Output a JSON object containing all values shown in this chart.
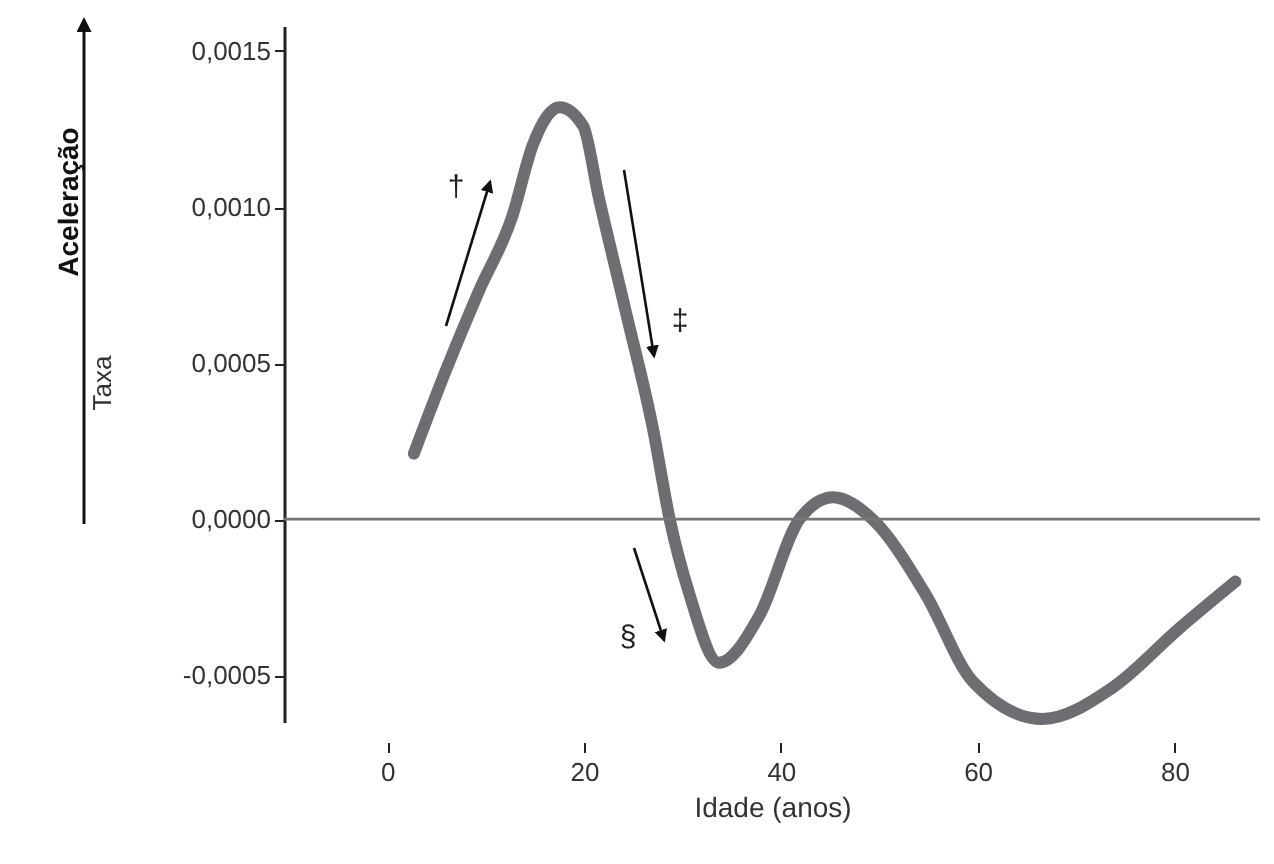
{
  "chart_data": {
    "type": "line",
    "xlabel": "Idade (anos)",
    "ylabel": "Taxa",
    "x": [
      2.7,
      6.0,
      9.3,
      12.7,
      14.8,
      17.5,
      19.9,
      21.5,
      24.2,
      27.0,
      28.7,
      30.7,
      33.7,
      37.8,
      41.9,
      45.3,
      49.3,
      54.7,
      59.5,
      66.6,
      73.7,
      80.5,
      86.2
    ],
    "series": [
      {
        "color": "#6d6e71",
        "values": [
          0.00021,
          0.00048,
          0.00073,
          0.00097,
          0.0012,
          0.00132,
          0.00126,
          0.00103,
          0.00067,
          0.00029,
          0,
          -0.00024,
          -0.00046,
          -0.00031,
          0,
          7e-05,
          0,
          -0.00024,
          -0.00052,
          -0.00064,
          -0.00054,
          -0.00035,
          -0.0002
        ]
      }
    ],
    "xlim": [
      -10.5,
      88.7
    ],
    "xticks": [
      0,
      20,
      40,
      60,
      80
    ],
    "ylim": [
      -0.00065,
      0.00158
    ],
    "yticks": [
      {
        "value": 0.0015,
        "label": "0,0015"
      },
      {
        "value": 0.001,
        "label": "0,0010"
      },
      {
        "value": 0.0005,
        "label": "0,0005"
      },
      {
        "value": 0,
        "label": "0,0000"
      },
      {
        "value": -0.0005,
        "label": "-0,0005"
      }
    ],
    "ref_lines": [
      {
        "axis": "y",
        "value": 0,
        "color": "#777777"
      }
    ],
    "annotations": [
      "Aceleração",
      "†",
      "‡",
      "§"
    ],
    "grid": false,
    "marker": "none",
    "line_style": "solid"
  }
}
